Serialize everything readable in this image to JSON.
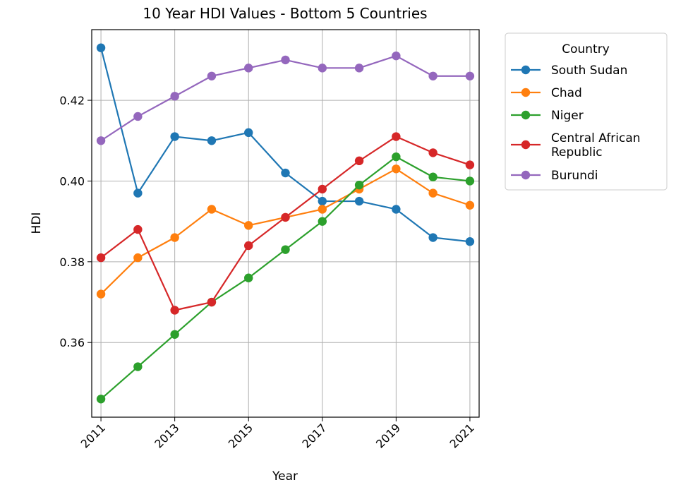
{
  "chart_data": {
    "type": "line",
    "title": "10 Year HDI Values - Bottom 5 Countries",
    "xlabel": "Year",
    "ylabel": "HDI",
    "x": [
      2011,
      2012,
      2013,
      2014,
      2015,
      2016,
      2017,
      2018,
      2019,
      2020,
      2021
    ],
    "x_ticks": [
      2011,
      2013,
      2015,
      2017,
      2019,
      2021
    ],
    "x_tick_labels": [
      "2011",
      "2013",
      "2015",
      "2017",
      "2019",
      "2021"
    ],
    "y_ticks": [
      0.36,
      0.38,
      0.4,
      0.42
    ],
    "y_tick_labels": [
      "0.36",
      "0.38",
      "0.40",
      "0.42"
    ],
    "ylim": [
      0.3415,
      0.4375
    ],
    "xlim": [
      2010.75,
      2021.25
    ],
    "grid": true,
    "legend": {
      "title": "Country",
      "placement": "outside-top-right"
    },
    "series": [
      {
        "name": "South Sudan",
        "color": "#1f77b4",
        "values": [
          0.433,
          0.397,
          0.411,
          0.41,
          0.412,
          0.402,
          0.395,
          0.395,
          0.393,
          0.386,
          0.385
        ]
      },
      {
        "name": "Chad",
        "color": "#ff7f0e",
        "values": [
          0.372,
          0.381,
          0.386,
          0.393,
          0.389,
          0.391,
          0.393,
          0.398,
          0.403,
          0.397,
          0.394
        ]
      },
      {
        "name": "Niger",
        "color": "#2ca02c",
        "values": [
          0.346,
          0.354,
          0.362,
          0.37,
          0.376,
          0.383,
          0.39,
          0.399,
          0.406,
          0.401,
          0.4
        ]
      },
      {
        "name": "Central African Republic",
        "legend_lines": [
          "Central African",
          "Republic"
        ],
        "color": "#d62728",
        "values": [
          0.381,
          0.388,
          0.368,
          0.37,
          0.384,
          0.391,
          0.398,
          0.405,
          0.411,
          0.407,
          0.404
        ]
      },
      {
        "name": "Burundi",
        "color": "#9467bd",
        "values": [
          0.41,
          0.416,
          0.421,
          0.426,
          0.428,
          0.43,
          0.428,
          0.428,
          0.431,
          0.426,
          0.426
        ]
      }
    ]
  }
}
